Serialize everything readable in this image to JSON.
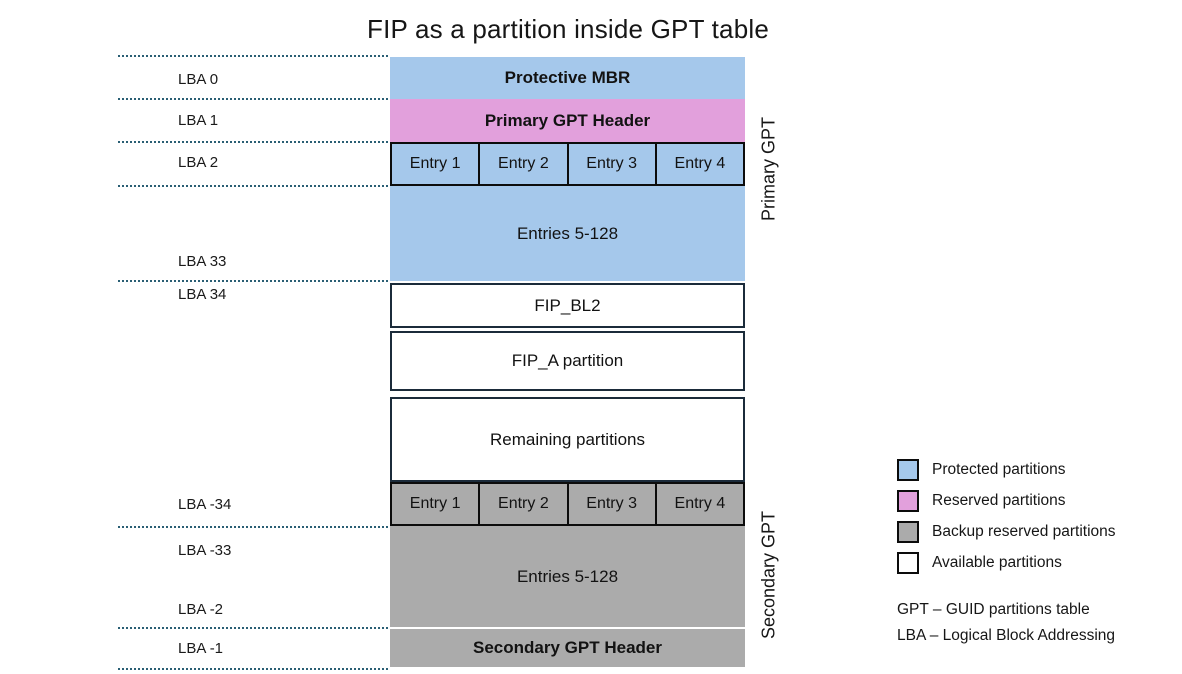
{
  "title": "FIP as a partition inside GPT table",
  "diagram": {
    "blocks": {
      "protective_mbr": "Protective MBR",
      "primary_gpt_header": "Primary GPT Header",
      "primary_entries": [
        "Entry 1",
        "Entry 2",
        "Entry 3",
        "Entry 4"
      ],
      "primary_entries_rest": "Entries 5-128",
      "fip_bl2": "FIP_BL2",
      "fip_a": "FIP_A partition",
      "remaining": "Remaining partitions",
      "secondary_entries": [
        "Entry 1",
        "Entry 2",
        "Entry 3",
        "Entry 4"
      ],
      "secondary_entries_rest": "Entries 5-128",
      "secondary_gpt_header": "Secondary GPT Header"
    },
    "lba_labels": [
      "LBA 0",
      "LBA 1",
      "LBA 2",
      "LBA 33",
      "LBA 34",
      "LBA -34",
      "LBA -33",
      "LBA -2",
      "LBA -1"
    ],
    "side_labels": {
      "primary": "Primary GPT",
      "secondary": "Secondary GPT"
    }
  },
  "legend": {
    "items": [
      {
        "label": "Protected partitions",
        "color": "#a5c8eb"
      },
      {
        "label": "Reserved partitions",
        "color": "#e2a0dc"
      },
      {
        "label": "Backup reserved partitions",
        "color": "#ababab"
      },
      {
        "label": "Available partitions",
        "color": "#ffffff"
      }
    ]
  },
  "notes": {
    "gpt": "GPT – GUID partitions table",
    "lba": "LBA – Logical Block Addressing"
  },
  "colors": {
    "protected_blue": "#a5c8eb",
    "reserved_pink": "#e2a0dc",
    "backup_gray": "#ababab",
    "available_white": "#ffffff",
    "dotted_line": "#2a5e74",
    "block_border": "#1b2b3a",
    "cell_border": "#0c0c0c"
  }
}
